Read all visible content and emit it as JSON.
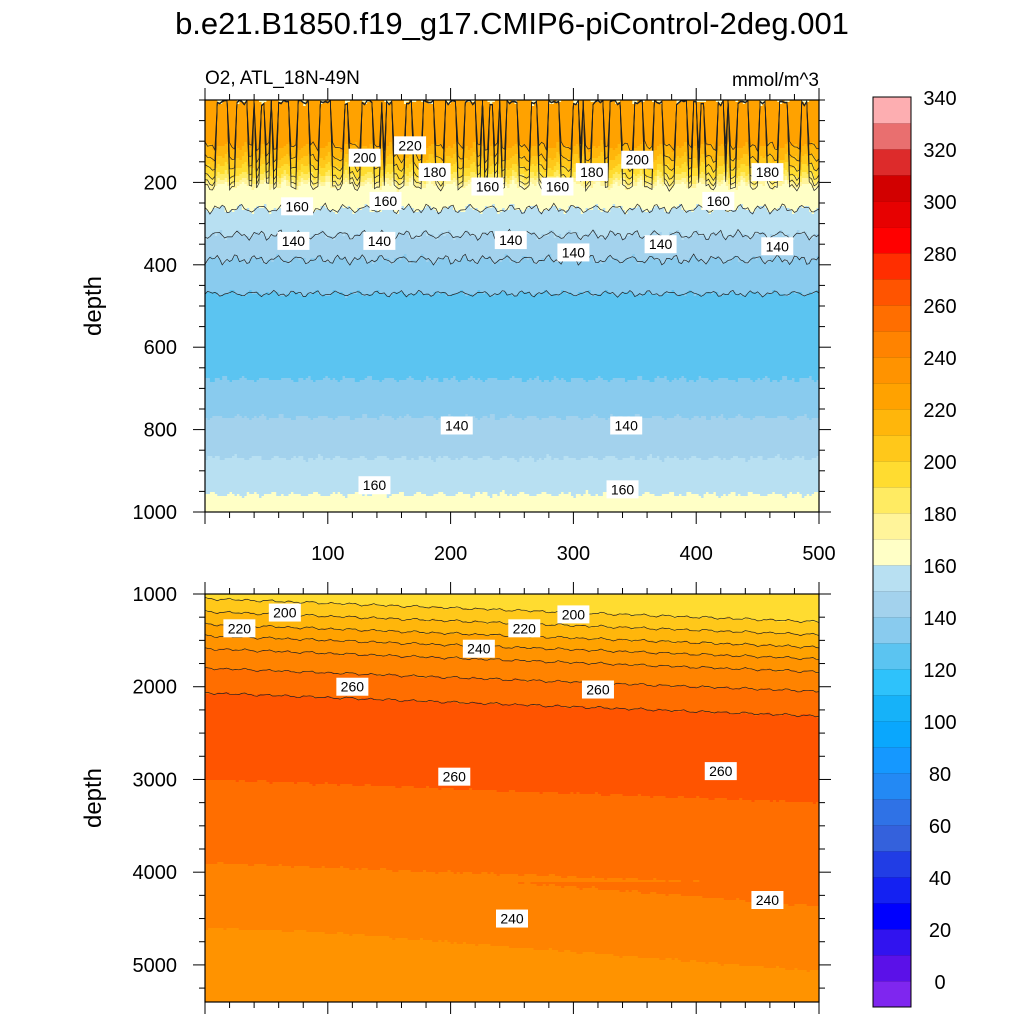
{
  "title": "b.e21.B1850.f19_g17.CMIP6-piControl-2deg.001",
  "variable_label": "O2, ATL_18N-49N",
  "units_label": "mmol/m^3",
  "chart_data": [
    {
      "type": "heatmap",
      "panel": "upper",
      "ylabel": "depth",
      "xlim": [
        0,
        500
      ],
      "ylim": [
        1000,
        0
      ],
      "y_reversed": true,
      "xticks": [
        100,
        200,
        300,
        400,
        500
      ],
      "yticks": [
        200,
        400,
        600,
        800,
        1000
      ],
      "contour_labels": [
        {
          "value": "220",
          "x": 167,
          "y": 110
        },
        {
          "value": "200",
          "x": 130,
          "y": 140
        },
        {
          "value": "200",
          "x": 352,
          "y": 145
        },
        {
          "value": "180",
          "x": 187,
          "y": 175
        },
        {
          "value": "180",
          "x": 315,
          "y": 175
        },
        {
          "value": "180",
          "x": 458,
          "y": 175
        },
        {
          "value": "160",
          "x": 75,
          "y": 258
        },
        {
          "value": "160",
          "x": 147,
          "y": 245
        },
        {
          "value": "160",
          "x": 230,
          "y": 210
        },
        {
          "value": "160",
          "x": 287,
          "y": 210
        },
        {
          "value": "160",
          "x": 418,
          "y": 245
        },
        {
          "value": "140",
          "x": 72,
          "y": 342
        },
        {
          "value": "140",
          "x": 142,
          "y": 342
        },
        {
          "value": "140",
          "x": 249,
          "y": 340
        },
        {
          "value": "140",
          "x": 300,
          "y": 370
        },
        {
          "value": "140",
          "x": 371,
          "y": 350
        },
        {
          "value": "140",
          "x": 466,
          "y": 355
        },
        {
          "value": "140",
          "x": 205,
          "y": 790
        },
        {
          "value": "140",
          "x": 343,
          "y": 790
        },
        {
          "value": "160",
          "x": 138,
          "y": 935
        },
        {
          "value": "160",
          "x": 340,
          "y": 945
        }
      ]
    },
    {
      "type": "heatmap",
      "panel": "lower",
      "ylabel": "depth",
      "xlim": [
        0,
        500
      ],
      "ylim": [
        5400,
        1000
      ],
      "y_reversed": true,
      "yticks": [
        1000,
        2000,
        3000,
        4000,
        5000
      ],
      "contour_labels": [
        {
          "value": "200",
          "x": 65,
          "y": 1200
        },
        {
          "value": "200",
          "x": 300,
          "y": 1220
        },
        {
          "value": "220",
          "x": 28,
          "y": 1370
        },
        {
          "value": "220",
          "x": 260,
          "y": 1370
        },
        {
          "value": "240",
          "x": 223,
          "y": 1590
        },
        {
          "value": "260",
          "x": 120,
          "y": 2000
        },
        {
          "value": "260",
          "x": 320,
          "y": 2030
        },
        {
          "value": "260",
          "x": 203,
          "y": 2970
        },
        {
          "value": "260",
          "x": 420,
          "y": 2910
        },
        {
          "value": "240",
          "x": 250,
          "y": 4500
        },
        {
          "value": "240",
          "x": 458,
          "y": 4300
        }
      ]
    }
  ],
  "colorbar": {
    "tick_labels": [
      "0",
      "20",
      "40",
      "60",
      "80",
      "100",
      "120",
      "140",
      "160",
      "180",
      "200",
      "220",
      "240",
      "260",
      "280",
      "300",
      "320",
      "340"
    ],
    "levels_from": -10,
    "level_step": 10,
    "colors": [
      "#7f26ef",
      "#5b11e8",
      "#3113ef",
      "#0000fe",
      "#1421f2",
      "#213de5",
      "#3461dc",
      "#2f72e6",
      "#2389f4",
      "#1598ff",
      "#0aa7fd",
      "#16b2f9",
      "#2ec2fb",
      "#5bc4f1",
      "#89cbee",
      "#a3d2ed",
      "#b8e0f2",
      "#ffffc6",
      "#fff49a",
      "#ffeb62",
      "#ffdc30",
      "#ffc81a",
      "#ffb60b",
      "#ffa200",
      "#ff9300",
      "#ff8300",
      "#ff6e00",
      "#ff5400",
      "#ff2e00",
      "#ff0000",
      "#e70101",
      "#d20000",
      "#dd2b2b",
      "#e96f6f",
      "#fdaeb1"
    ]
  }
}
